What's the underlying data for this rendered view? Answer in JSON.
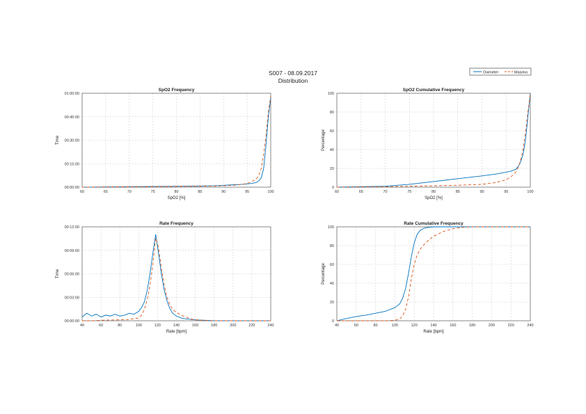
{
  "header": {
    "title": "S007 - 08.09.2017",
    "subtitle": "Distribution"
  },
  "legend": {
    "placement": "top-right",
    "entries": [
      {
        "label": "Oximeter",
        "color": "#0072bd",
        "style": "solid"
      },
      {
        "label": "Masimo",
        "color": "#d95319",
        "style": "dashed"
      }
    ]
  },
  "chart_data": [
    {
      "id": "spo2-frequency",
      "type": "line",
      "title": "SpO2 Frequency",
      "xlabel": "SpO2 [%]",
      "ylabel": "Time",
      "xlim": [
        60,
        100
      ],
      "ylim": [
        0,
        1
      ],
      "x_ticks": [
        "60",
        "65",
        "70",
        "75",
        "80",
        "85",
        "90",
        "95",
        "100"
      ],
      "y_ticks": [
        "00:00:00",
        "00:15:00",
        "00:30:00",
        "00:45:00",
        "01:00:00"
      ],
      "grid": true,
      "series": [
        {
          "name": "Oximeter",
          "color": "#0072bd",
          "dash": "none",
          "x": [
            60,
            70,
            75,
            80,
            85,
            88,
            90,
            92,
            94,
            95,
            96,
            97,
            97.5,
            98,
            98.5,
            99,
            99.5,
            100
          ],
          "y": [
            0,
            0.005,
            0.008,
            0.01,
            0.012,
            0.015,
            0.02,
            0.025,
            0.03,
            0.035,
            0.04,
            0.05,
            0.07,
            0.1,
            0.2,
            0.45,
            0.75,
            0.95
          ]
        },
        {
          "name": "Masimo",
          "color": "#d95319",
          "dash": "4,3",
          "x": [
            60,
            70,
            75,
            80,
            85,
            88,
            90,
            92,
            94,
            95,
            96,
            97,
            97.5,
            98,
            98.5,
            99,
            99.5,
            100
          ],
          "y": [
            0,
            0.004,
            0.006,
            0.008,
            0.01,
            0.012,
            0.015,
            0.02,
            0.03,
            0.04,
            0.06,
            0.09,
            0.13,
            0.2,
            0.35,
            0.55,
            0.8,
            0.97
          ]
        }
      ]
    },
    {
      "id": "spo2-cumulative",
      "type": "line",
      "title": "SpO2 Cumulative Frequency",
      "xlabel": "SpO2 [%]",
      "ylabel": "Percentage",
      "xlim": [
        60,
        100
      ],
      "ylim": [
        0,
        100
      ],
      "x_ticks": [
        "60",
        "65",
        "70",
        "75",
        "80",
        "85",
        "90",
        "95",
        "100"
      ],
      "y_ticks": [
        "0",
        "20",
        "40",
        "60",
        "80",
        "100"
      ],
      "grid": true,
      "series": [
        {
          "name": "Oximeter",
          "color": "#0072bd",
          "dash": "none",
          "x": [
            60,
            65,
            70,
            75,
            80,
            85,
            90,
            93,
            95,
            96,
            97,
            97.5,
            98,
            98.5,
            99,
            99.5,
            100
          ],
          "y": [
            0,
            0.5,
            1,
            3,
            6,
            9,
            12,
            14,
            16,
            17,
            19,
            22,
            27,
            35,
            50,
            75,
            100
          ]
        },
        {
          "name": "Masimo",
          "color": "#d95319",
          "dash": "4,3",
          "x": [
            60,
            65,
            70,
            75,
            80,
            85,
            90,
            93,
            95,
            96,
            97,
            97.5,
            98,
            98.5,
            99,
            99.5,
            100
          ],
          "y": [
            0,
            0.2,
            0.5,
            1,
            1.5,
            2,
            3,
            5,
            8,
            11,
            16,
            21,
            29,
            40,
            58,
            80,
            100
          ]
        }
      ]
    },
    {
      "id": "rate-frequency",
      "type": "line",
      "title": "Rate Frequency",
      "xlabel": "Rate [bpm]",
      "ylabel": "Time",
      "xlim": [
        40,
        240
      ],
      "ylim": [
        0,
        1
      ],
      "x_ticks": [
        "40",
        "60",
        "80",
        "100",
        "120",
        "140",
        "160",
        "180",
        "200",
        "220",
        "240"
      ],
      "y_ticks": [
        "00:00:00",
        "00:03:00",
        "00:06:00",
        "00:09:00",
        "00:12:00"
      ],
      "grid": true,
      "series": [
        {
          "name": "Oximeter",
          "color": "#0072bd",
          "dash": "none",
          "x": [
            40,
            45,
            50,
            55,
            60,
            65,
            70,
            75,
            80,
            85,
            90,
            95,
            100,
            103,
            106,
            109,
            112,
            115,
            118,
            121,
            124,
            127,
            130,
            133,
            136,
            140,
            145,
            150,
            160,
            170,
            180,
            200,
            240
          ],
          "y": [
            0.04,
            0.08,
            0.05,
            0.07,
            0.04,
            0.06,
            0.05,
            0.07,
            0.05,
            0.06,
            0.08,
            0.07,
            0.1,
            0.14,
            0.2,
            0.32,
            0.5,
            0.72,
            0.92,
            0.72,
            0.5,
            0.33,
            0.21,
            0.13,
            0.08,
            0.05,
            0.03,
            0.02,
            0.01,
            0.005,
            0,
            0,
            0
          ]
        },
        {
          "name": "Masimo",
          "color": "#d95319",
          "dash": "4,3",
          "x": [
            40,
            50,
            60,
            70,
            80,
            90,
            100,
            103,
            106,
            109,
            112,
            115,
            118,
            121,
            124,
            127,
            130,
            133,
            136,
            140,
            145,
            150,
            155,
            160,
            170,
            180,
            200,
            240
          ],
          "y": [
            0,
            0,
            0.005,
            0.008,
            0.01,
            0.015,
            0.03,
            0.06,
            0.12,
            0.22,
            0.38,
            0.6,
            0.88,
            0.78,
            0.56,
            0.38,
            0.25,
            0.17,
            0.12,
            0.09,
            0.06,
            0.04,
            0.02,
            0.01,
            0.005,
            0,
            0,
            0
          ]
        }
      ]
    },
    {
      "id": "rate-cumulative",
      "type": "line",
      "title": "Rate Cumulative Frequency",
      "xlabel": "Rate [bpm]",
      "ylabel": "Percentage",
      "xlim": [
        40,
        240
      ],
      "ylim": [
        0,
        100
      ],
      "x_ticks": [
        "40",
        "60",
        "80",
        "100",
        "120",
        "140",
        "160",
        "180",
        "200",
        "220",
        "240"
      ],
      "y_ticks": [
        "0",
        "20",
        "40",
        "60",
        "80",
        "100"
      ],
      "grid": true,
      "series": [
        {
          "name": "Oximeter",
          "color": "#0072bd",
          "dash": "none",
          "x": [
            40,
            50,
            60,
            70,
            80,
            90,
            100,
            105,
            108,
            111,
            114,
            117,
            120,
            123,
            126,
            130,
            135,
            140,
            160,
            240
          ],
          "y": [
            0,
            2.5,
            4.5,
            6,
            8,
            10,
            14,
            18,
            24,
            34,
            50,
            68,
            83,
            92,
            96,
            98.5,
            99.5,
            100,
            100,
            100
          ]
        },
        {
          "name": "Masimo",
          "color": "#d95319",
          "dash": "4,3",
          "x": [
            40,
            90,
            100,
            105,
            108,
            111,
            114,
            117,
            120,
            123,
            126,
            130,
            135,
            140,
            150,
            160,
            170,
            180,
            240
          ],
          "y": [
            0,
            0,
            0.5,
            2,
            5,
            12,
            25,
            45,
            60,
            70,
            76,
            81,
            86,
            90,
            95,
            98,
            99.5,
            100,
            100
          ]
        }
      ]
    }
  ]
}
